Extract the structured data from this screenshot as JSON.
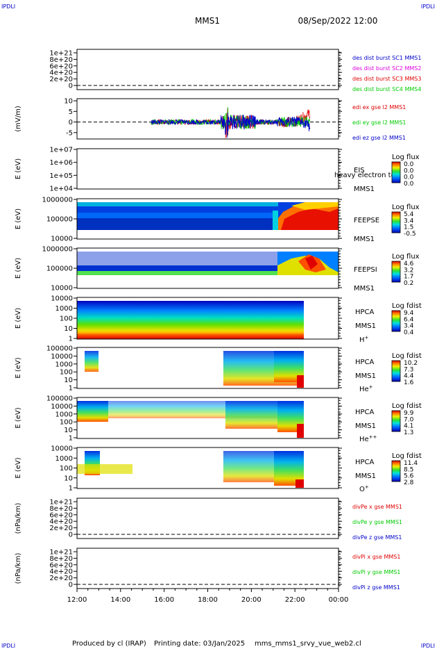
{
  "corner_labels": {
    "top_left": "IPDLI",
    "top_right": "IPDLI",
    "bottom_left": "IPDLI",
    "bottom_right": "IPDLI"
  },
  "header": {
    "mission": "MMS1",
    "date": "08/Sep/2022 12:00"
  },
  "footer": {
    "produced_by": "Produced by cl (IRAP)",
    "printing_date": "Printing date: 03/Jan/2025",
    "filename": "mms_mms1_srvy_vue_web2.cl"
  },
  "colors": {
    "red": "#e00000",
    "green": "#00cc00",
    "blue": "#0000cc",
    "magenta": "#e000e0",
    "frame": "#000000"
  },
  "chart_data": {
    "type": "multi-panel time series",
    "x_ticks": [
      "12:00",
      "14:00",
      "16:00",
      "18:00",
      "20:00",
      "22:00",
      "00:00"
    ],
    "x_range_hours": [
      12,
      24
    ],
    "panels": [
      {
        "id": "des-dist",
        "type": "line",
        "ylabel": "",
        "y_ticks": [
          "1e+21",
          "8e+20",
          "6e+20",
          "4e+20",
          "2e+20",
          "0"
        ],
        "legend": [
          {
            "name": "des dist burst SC1 MMS1",
            "color": "#0000cc"
          },
          {
            "name": "des dist burst SC2 MMS2",
            "color": "#e000e0"
          },
          {
            "name": "des dist burst SC3 MMS3",
            "color": "#e00000"
          },
          {
            "name": "des dist burst SC4 MMS4",
            "color": "#00cc00"
          }
        ],
        "zero_line": true
      },
      {
        "id": "edi",
        "type": "line",
        "ylabel": "(mV/m)",
        "y_ticks": [
          "10",
          "5",
          "0",
          "-5"
        ],
        "ylim": [
          -8,
          11
        ],
        "legend": [
          {
            "name": "edi ex gse l2 MMS1",
            "color": "#e00000"
          },
          {
            "name": "edi ey gse l2 MMS1",
            "color": "#00cc00"
          },
          {
            "name": "edi ez gse l2 MMS1",
            "color": "#0000cc"
          }
        ],
        "data_range_hours": [
          15.4,
          22.7
        ],
        "zero_line": true
      },
      {
        "id": "eis",
        "type": "heatmap",
        "ylabel": "E (eV)",
        "y_ticks": [
          "1e+07",
          "1e+06",
          "1e+05",
          "1e+04"
        ],
        "labels": [
          "EIS",
          "MMS1"
        ],
        "overlay_text": "heavy electron to",
        "colorbar": {
          "title": "Log flux",
          "ticks": [
            "0.0",
            "0.0",
            "0.0",
            "0.0"
          ]
        }
      },
      {
        "id": "feepse",
        "type": "heatmap",
        "ylabel": "E (eV)",
        "y_ticks": [
          "1000000",
          "100000",
          "10000"
        ],
        "labels": [
          "FEEPSE",
          "MMS1"
        ],
        "colorbar": {
          "title": "Log flux",
          "ticks": [
            "5.4",
            "3.4",
            "1.5",
            "-0.5"
          ]
        }
      },
      {
        "id": "feepsi",
        "type": "heatmap",
        "ylabel": "E (eV)",
        "y_ticks": [
          "1000000",
          "100000",
          "10000"
        ],
        "labels": [
          "FEEPSI",
          "MMS1"
        ],
        "colorbar": {
          "title": "Log flux",
          "ticks": [
            "4.6",
            "3.2",
            "1.7",
            "0.2"
          ]
        }
      },
      {
        "id": "hpca-h",
        "type": "heatmap",
        "ylabel": "E (eV)",
        "y_ticks": [
          "10000",
          "1000",
          "100",
          "10",
          "1"
        ],
        "labels": [
          "HPCA",
          "MMS1"
        ],
        "species": "H",
        "species_charge": "+",
        "colorbar": {
          "title": "Log fdist",
          "ticks": [
            "9.4",
            "6.4",
            "3.4",
            "0.4"
          ]
        }
      },
      {
        "id": "hpca-he",
        "type": "heatmap",
        "ylabel": "E (eV)",
        "y_ticks": [
          "100000",
          "10000",
          "1000",
          "100",
          "10",
          "1"
        ],
        "labels": [
          "HPCA",
          "MMS1"
        ],
        "species": "He",
        "species_charge": "+",
        "colorbar": {
          "title": "Log fdist",
          "ticks": [
            "10.2",
            "7.3",
            "4.4",
            "1.6"
          ]
        }
      },
      {
        "id": "hpca-hepp",
        "type": "heatmap",
        "ylabel": "E (eV)",
        "y_ticks": [
          "100000",
          "10000",
          "1000",
          "100",
          "10",
          "1"
        ],
        "labels": [
          "HPCA",
          "MMS1"
        ],
        "species": "He",
        "species_charge": "++",
        "colorbar": {
          "title": "Log fdist",
          "ticks": [
            "9.9",
            "7.0",
            "4.1",
            "1.3"
          ]
        }
      },
      {
        "id": "hpca-o",
        "type": "heatmap",
        "ylabel": "E (eV)",
        "y_ticks": [
          "10000",
          "1000",
          "100",
          "10",
          "1"
        ],
        "labels": [
          "HPCA",
          "MMS1"
        ],
        "species": "O",
        "species_charge": "+",
        "colorbar": {
          "title": "Log fdist",
          "ticks": [
            "11.4",
            "8.5",
            "5.6",
            "2.8"
          ]
        }
      },
      {
        "id": "divpe",
        "type": "line",
        "ylabel": "(nPa/km)",
        "y_ticks": [
          "1e+21",
          "8e+20",
          "6e+20",
          "4e+20",
          "2e+20",
          "0"
        ],
        "legend": [
          {
            "name": "divPe x gse MMS1",
            "color": "#e00000"
          },
          {
            "name": "divPe y gse MMS1",
            "color": "#00cc00"
          },
          {
            "name": "divPe z gse MMS1",
            "color": "#0000cc"
          }
        ],
        "zero_line": true
      },
      {
        "id": "divpi",
        "type": "line",
        "ylabel": "(nPa/km)",
        "y_ticks": [
          "1e+21",
          "8e+20",
          "6e+20",
          "4e+20",
          "2e+20",
          "0"
        ],
        "legend": [
          {
            "name": "divPi x gse MMS1",
            "color": "#e00000"
          },
          {
            "name": "divPi y gse MMS1",
            "color": "#00cc00"
          },
          {
            "name": "divPi z gse MMS1",
            "color": "#0000cc"
          }
        ],
        "zero_line": true
      }
    ]
  }
}
